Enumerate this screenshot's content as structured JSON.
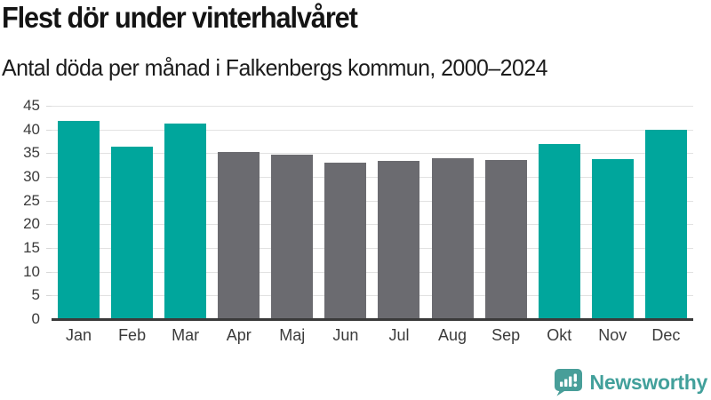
{
  "header": {
    "title": "Flest dör under vinterhalvåret",
    "subtitle": "Antal döda per månad i Falkenbergs kommun, 2000–2024"
  },
  "chart_data": {
    "type": "bar",
    "title": "Flest dör under vinterhalvåret",
    "subtitle": "Antal döda per månad i Falkenbergs kommun, 2000–2024",
    "categories": [
      "Jan",
      "Feb",
      "Mar",
      "Apr",
      "Maj",
      "Jun",
      "Jul",
      "Aug",
      "Sep",
      "Okt",
      "Nov",
      "Dec"
    ],
    "values": [
      41.8,
      36.4,
      41.2,
      35.3,
      34.7,
      33.0,
      33.4,
      33.9,
      33.5,
      36.9,
      33.7,
      39.9
    ],
    "bar_colors": [
      "#00a69c",
      "#00a69c",
      "#00a69c",
      "#6b6b70",
      "#6b6b70",
      "#6b6b70",
      "#6b6b70",
      "#6b6b70",
      "#6b6b70",
      "#00a69c",
      "#00a69c",
      "#00a69c"
    ],
    "xlabel": "",
    "ylabel": "",
    "ylim": [
      0,
      45
    ],
    "ytick_step": 5,
    "grid": true,
    "legend": "none"
  },
  "colors": {
    "winter_bar": "#00a69c",
    "summer_bar": "#6b6b70",
    "gridline": "#e2e2e2",
    "axis_line": "#3a3a3a",
    "title_text": "#141414",
    "axis_text": "#3b3b3b",
    "brand_teal": "#42a09b"
  },
  "footer": {
    "brand": "Newsworthy",
    "logo_icon": "newsworthy-speech-bubble-bar-chart-icon"
  }
}
